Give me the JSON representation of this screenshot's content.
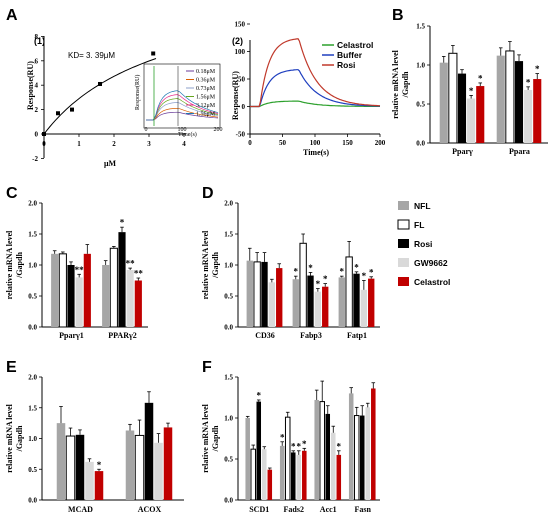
{
  "legend": [
    {
      "name": "NFL",
      "color": "#a6a6a6"
    },
    {
      "name": "FL",
      "color": "#ffffff"
    },
    {
      "name": "Rosi",
      "color": "#000000"
    },
    {
      "name": "GW9662",
      "color": "#d9d9d9"
    },
    {
      "name": "Celastrol",
      "color": "#c00000"
    }
  ],
  "panelA": {
    "letter": "A",
    "sub1": {
      "label": "(1)",
      "kd_text": "KD= 3. 39μM",
      "ylabel": "Response(RU)",
      "xlabel": "μM",
      "x_ticks": [
        "0",
        "1",
        "2",
        "3",
        "4"
      ],
      "y_ticks": [
        "-2",
        "0",
        "2",
        "4",
        "6",
        "8"
      ],
      "points": [
        [
          0,
          0
        ],
        [
          0.4,
          1.7
        ],
        [
          0.8,
          2.0
        ],
        [
          1.6,
          4.1
        ],
        [
          3.12,
          6.6
        ]
      ],
      "inset": {
        "ylabel": "Response(RU)",
        "xlabel": "Time(s)",
        "x_ticks": [
          "0",
          "100",
          "200"
        ],
        "conc": [
          "0.18μM",
          "0.36μM",
          "0.73μM",
          "1.56μM",
          "3.12μM",
          "1.56μM"
        ]
      }
    },
    "sub2": {
      "label": "(2)",
      "ylabel": "Response(RU)",
      "xlabel": "Time(s)",
      "x_ticks": [
        "0",
        "50",
        "100",
        "150",
        "200"
      ],
      "y_ticks": [
        "-50",
        "0",
        "50",
        "100",
        "150"
      ],
      "series": [
        {
          "name": "Celastrol",
          "color": "#2ca02c",
          "peak": 10
        },
        {
          "name": "Buffer",
          "color": "#1f3fbf",
          "peak": 68
        },
        {
          "name": "Rosi",
          "color": "#c0392b",
          "peak": 125
        }
      ]
    }
  },
  "chart_data": [
    {
      "panel": "B",
      "type": "bar",
      "ylabel": "relative mRNA level /Gapdh",
      "ylim": [
        0,
        1.5
      ],
      "y_ticks": [
        "0.0",
        "0.5",
        "1.0",
        "1.5"
      ],
      "categories": [
        "Pparγ",
        "Ppara"
      ],
      "series": [
        {
          "name": "NFL",
          "values": [
            1.03,
            1.12
          ],
          "err": [
            0.08,
            0.1
          ]
        },
        {
          "name": "FL",
          "values": [
            1.15,
            1.18
          ],
          "err": [
            0.1,
            0.12
          ]
        },
        {
          "name": "Rosi",
          "values": [
            0.89,
            1.05
          ],
          "err": [
            0.05,
            0.08
          ]
        },
        {
          "name": "GW9662",
          "values": [
            0.57,
            0.68
          ],
          "err": [
            0.04,
            0.04
          ]
        },
        {
          "name": "Celastrol",
          "values": [
            0.73,
            0.82
          ],
          "err": [
            0.04,
            0.07
          ]
        }
      ],
      "stars": [
        [
          "",
          "",
          "",
          "*",
          "*"
        ],
        [
          "",
          "",
          "",
          "*",
          "*"
        ]
      ]
    },
    {
      "panel": "C",
      "type": "bar",
      "ylabel": "relative mRNA level /Gapdh",
      "ylim": [
        0,
        2.0
      ],
      "y_ticks": [
        "0.0",
        "0.5",
        "1.0",
        "1.5",
        "2.0"
      ],
      "categories": [
        "Pparγ1",
        "PPARγ2"
      ],
      "series": [
        {
          "name": "NFL",
          "values": [
            1.18,
            1.0
          ],
          "err": [
            0.05,
            0.07
          ]
        },
        {
          "name": "FL",
          "values": [
            1.18,
            1.27
          ],
          "err": [
            0.03,
            0.03
          ]
        },
        {
          "name": "Rosi",
          "values": [
            1.0,
            1.53
          ],
          "err": [
            0.05,
            0.08
          ]
        },
        {
          "name": "GW9662",
          "values": [
            0.8,
            0.92
          ],
          "err": [
            0.05,
            0.03
          ]
        },
        {
          "name": "Celastrol",
          "values": [
            1.18,
            0.75
          ],
          "err": [
            0.15,
            0.04
          ]
        }
      ],
      "stars": [
        [
          "",
          "",
          "",
          "**",
          ""
        ],
        [
          "",
          "",
          "*",
          "**",
          "**"
        ]
      ]
    },
    {
      "panel": "D",
      "type": "bar",
      "ylabel": "relative mRNA level /Gapdh",
      "ylim": [
        0,
        2.0
      ],
      "y_ticks": [
        "0.0",
        "0.5",
        "1.0",
        "1.5",
        "2.0"
      ],
      "categories": [
        "CD36",
        "Fabp3",
        "Fatp1"
      ],
      "series": [
        {
          "name": "NFL",
          "values": [
            1.07,
            0.77,
            0.8
          ],
          "err": [
            0.2,
            0.05,
            0.02
          ]
        },
        {
          "name": "FL",
          "values": [
            1.05,
            1.35,
            1.13
          ],
          "err": [
            0.15,
            0.15,
            0.25
          ]
        },
        {
          "name": "Rosi",
          "values": [
            1.05,
            0.83,
            0.86
          ],
          "err": [
            0.15,
            0.05,
            0.03
          ]
        },
        {
          "name": "GW9662",
          "values": [
            0.72,
            0.57,
            0.6
          ],
          "err": [
            0.05,
            0.05,
            0.15
          ]
        },
        {
          "name": "Celastrol",
          "values": [
            0.95,
            0.65,
            0.78
          ],
          "err": [
            0.07,
            0.05,
            0.03
          ]
        }
      ],
      "stars": [
        [
          "",
          "",
          "",
          "",
          ""
        ],
        [
          "*",
          "",
          "*",
          "*",
          "*"
        ],
        [
          "*",
          "",
          "*",
          "*",
          "*"
        ]
      ]
    },
    {
      "panel": "E",
      "type": "bar",
      "ylabel": "relative mRNA level /Gapdh",
      "ylim": [
        0,
        2.0
      ],
      "y_ticks": [
        "0.0",
        "0.5",
        "1.0",
        "1.5",
        "2.0"
      ],
      "categories": [
        "MCAD",
        "ACOX"
      ],
      "series": [
        {
          "name": "NFL",
          "values": [
            1.25,
            1.13
          ],
          "err": [
            0.27,
            0.1
          ]
        },
        {
          "name": "FL",
          "values": [
            1.04,
            1.05
          ],
          "err": [
            0.13,
            0.25
          ]
        },
        {
          "name": "Rosi",
          "values": [
            1.06,
            1.58
          ],
          "err": [
            0.08,
            0.18
          ]
        },
        {
          "name": "GW9662",
          "values": [
            0.62,
            0.93
          ],
          "err": [
            0.05,
            0.15
          ]
        },
        {
          "name": "Celastrol",
          "values": [
            0.47,
            1.18
          ],
          "err": [
            0.03,
            0.07
          ]
        }
      ],
      "stars": [
        [
          "",
          "",
          "",
          "",
          "*"
        ],
        [
          "",
          "",
          "",
          "",
          ""
        ]
      ]
    },
    {
      "panel": "F",
      "type": "bar",
      "ylabel": "relative mRNA level /Gapdh",
      "ylim": [
        0,
        1.5
      ],
      "y_ticks": [
        "0.0",
        "0.5",
        "1.0",
        "1.5"
      ],
      "categories": [
        "SCD1",
        "Fads2",
        "Acc1",
        "Fasn"
      ],
      "series": [
        {
          "name": "NFL",
          "values": [
            1.0,
            0.66,
            1.22,
            1.3
          ],
          "err": [
            0.02,
            0.05,
            0.12,
            0.07
          ]
        },
        {
          "name": "FL",
          "values": [
            0.62,
            1.01,
            1.2,
            1.03
          ],
          "err": [
            0.05,
            0.06,
            0.25,
            0.1
          ]
        },
        {
          "name": "Rosi",
          "values": [
            1.2,
            0.58,
            1.05,
            1.03
          ],
          "err": [
            0.02,
            0.02,
            0.1,
            0.12
          ]
        },
        {
          "name": "GW9662",
          "values": [
            0.62,
            0.55,
            0.82,
            1.13
          ],
          "err": [
            0.03,
            0.05,
            0.08,
            0.05
          ]
        },
        {
          "name": "Celastrol",
          "values": [
            0.37,
            0.6,
            0.55,
            1.36
          ],
          "err": [
            0.02,
            0.03,
            0.05,
            0.07
          ]
        }
      ],
      "stars": [
        [
          "",
          "",
          "*",
          "",
          ""
        ],
        [
          "*",
          "",
          "*",
          "*",
          "*"
        ],
        [
          "",
          "",
          "",
          "",
          "*"
        ],
        [
          "",
          "",
          "",
          "",
          ""
        ]
      ]
    }
  ]
}
